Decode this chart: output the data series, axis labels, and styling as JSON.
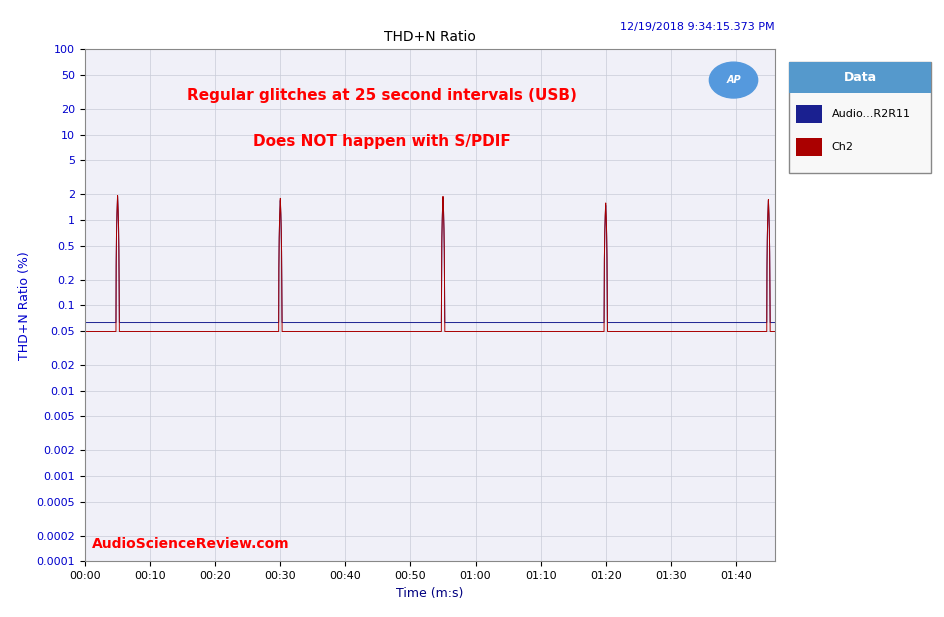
{
  "title": "THD+N Ratio",
  "timestamp": "12/19/2018 9:34:15.373 PM",
  "xlabel": "Time (m:s)",
  "ylabel": "THD+N Ratio (%)",
  "annotation_line1": "Regular glitches at 25 second intervals (USB)",
  "annotation_line2": "Does NOT happen with S/PDIF",
  "watermark": "AudioScienceReview.com",
  "legend_title": "Data",
  "legend_entries": [
    "Audio...R2R11",
    "Ch2"
  ],
  "ch1_color": "#1a2090",
  "ch2_color": "#aa0000",
  "ch1_baseline": 0.063,
  "ch2_baseline": 0.0495,
  "glitch_peaks_ch1": [
    1.9,
    1.7,
    1.85,
    1.5,
    1.7
  ],
  "glitch_peaks_ch2": [
    1.95,
    1.8,
    1.9,
    1.6,
    1.75
  ],
  "glitch_times_s": [
    5,
    30,
    55,
    80,
    105
  ],
  "total_duration_s": 106,
  "x_tick_interval_s": 10,
  "ylim": [
    0.0001,
    100
  ],
  "yticks": [
    100,
    50,
    20,
    10,
    5,
    2,
    1,
    0.5,
    0.2,
    0.1,
    0.05,
    0.02,
    0.01,
    0.005,
    0.002,
    0.001,
    0.0005,
    0.0002,
    0.0001
  ],
  "background_color": "#ffffff",
  "plot_bg_color": "#f0f0f8",
  "grid_color": "#c8ccd8",
  "annotation_color": "#ff0000",
  "timestamp_color": "#0000cc",
  "watermark_color": "#ff0000",
  "title_color": "#000000",
  "ytick_color": "#0000cc",
  "xtick_color": "#000000",
  "xlabel_color": "#000080",
  "ylabel_color": "#0000cc",
  "ap_logo_color": "#5599dd",
  "legend_header_bg": "#5599cc",
  "legend_bg": "#f8f8f8"
}
